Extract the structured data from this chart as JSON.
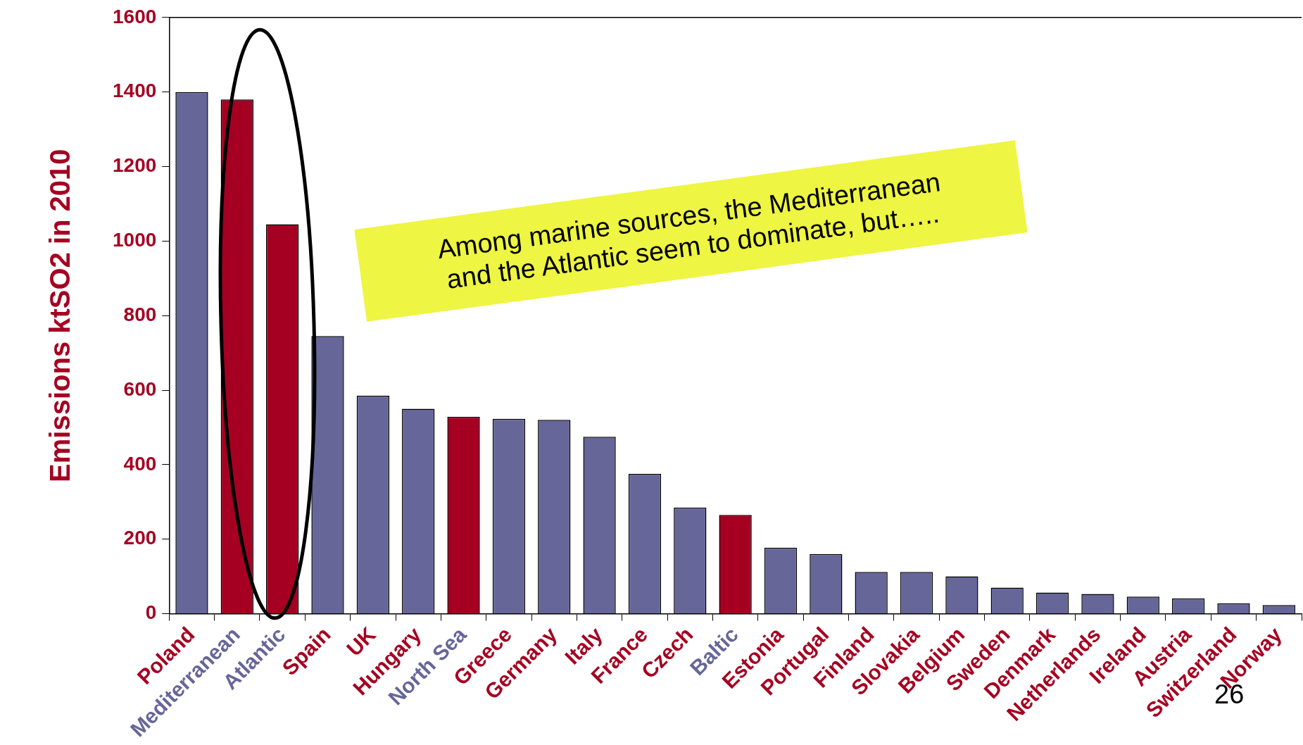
{
  "chart_data": {
    "type": "bar",
    "ylabel": "Emissions ktSO2 in 2010",
    "categories": [
      "Poland",
      "Mediterranean",
      "Atlantic",
      "Spain",
      "UK",
      "Hungary",
      "North Sea",
      "Greece",
      "Germany",
      "Italy",
      "France",
      "Czech",
      "Baltic",
      "Estonia",
      "Portugal",
      "Finland",
      "Slovakia",
      "Belgium",
      "Sweden",
      "Denmark",
      "Netherlands",
      "Ireland",
      "Austria",
      "Switzerland",
      "Norway"
    ],
    "values": [
      1400,
      1380,
      1045,
      745,
      585,
      550,
      528,
      523,
      520,
      475,
      375,
      285,
      265,
      177,
      160,
      112,
      112,
      100,
      70,
      57,
      53,
      46,
      41,
      28,
      23
    ],
    "colors": [
      "#666699",
      "#a50021",
      "#a50021",
      "#666699",
      "#666699",
      "#666699",
      "#a50021",
      "#666699",
      "#666699",
      "#666699",
      "#666699",
      "#666699",
      "#a50021",
      "#666699",
      "#666699",
      "#666699",
      "#666699",
      "#666699",
      "#666699",
      "#666699",
      "#666699",
      "#666699",
      "#666699",
      "#666699",
      "#666699"
    ],
    "ylim": [
      0,
      1600
    ],
    "yticks": [
      0,
      200,
      400,
      600,
      800,
      1000,
      1200,
      1400,
      1600
    ],
    "grid": false,
    "legend": false,
    "annotations": [
      "Among marine sources, the Mediterranean and the Atlantic seem to dominate, but…..",
      "26"
    ]
  }
}
